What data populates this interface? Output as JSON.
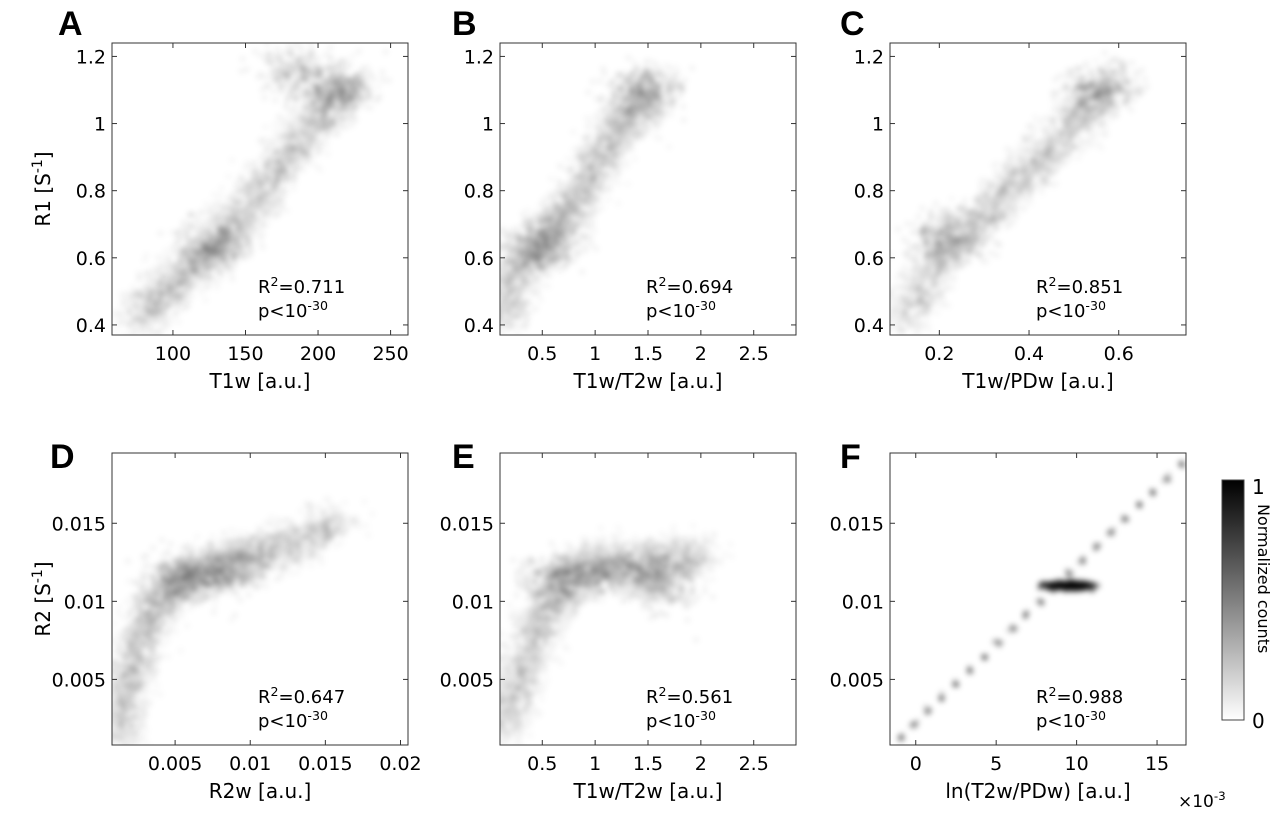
{
  "figure": {
    "colorbar": {
      "label": "Normalized counts",
      "max_label": "1",
      "min_label": "0",
      "range": [
        0,
        1
      ],
      "colors": {
        "low": "#ffffff",
        "high": "#000000"
      }
    }
  },
  "chart_data": [
    {
      "panel": "A",
      "type": "heatmap",
      "xlabel": "T1w [a.u.]",
      "ylabel": "R1 [S-1]",
      "xlim": [
        58,
        262
      ],
      "ylim": [
        0.37,
        1.24
      ],
      "xticks": [
        100,
        150,
        200,
        250
      ],
      "xtick_labels": [
        "100",
        "150",
        "200",
        "250"
      ],
      "yticks": [
        0.4,
        0.6,
        0.8,
        1.0,
        1.2
      ],
      "ytick_labels": [
        "0.4",
        "0.6",
        "0.8",
        "1",
        "1.2"
      ],
      "annotation": {
        "r2": "R2=0.711",
        "p": "p<10-30"
      },
      "density_ridge": {
        "x": [
          75,
          100,
          125,
          150,
          175,
          200,
          225
        ],
        "y": [
          0.42,
          0.52,
          0.62,
          0.74,
          0.88,
          1.02,
          1.12
        ]
      },
      "dense_clusters": [
        {
          "x": 130,
          "y": 0.64,
          "weight": 1.0
        },
        {
          "x": 185,
          "y": 1.15,
          "weight": 0.8
        },
        {
          "x": 212,
          "y": 1.1,
          "weight": 0.9
        }
      ]
    },
    {
      "panel": "B",
      "type": "heatmap",
      "xlabel": "T1w/T2w [a.u.]",
      "ylabel": "",
      "xlim": [
        0.1,
        2.9
      ],
      "ylim": [
        0.37,
        1.24
      ],
      "xticks": [
        0.5,
        1,
        1.5,
        2,
        2.5
      ],
      "xtick_labels": [
        "0.5",
        "1",
        "1.5",
        "2",
        "2.5"
      ],
      "yticks": [
        0.4,
        0.6,
        0.8,
        1.0,
        1.2
      ],
      "ytick_labels": [
        "0.4",
        "0.6",
        "0.8",
        "1",
        "1.2"
      ],
      "annotation": {
        "r2": "R2=0.694",
        "p": "p<10-30"
      },
      "density_ridge": {
        "x": [
          0.12,
          0.3,
          0.55,
          0.8,
          1.05,
          1.3,
          1.55
        ],
        "y": [
          0.42,
          0.58,
          0.66,
          0.76,
          0.9,
          1.02,
          1.1
        ]
      },
      "dense_clusters": [
        {
          "x": 0.5,
          "y": 0.64,
          "weight": 1.0
        },
        {
          "x": 1.48,
          "y": 1.1,
          "weight": 0.9
        }
      ]
    },
    {
      "panel": "C",
      "type": "heatmap",
      "xlabel": "T1w/PDw [a.u.]",
      "ylabel": "",
      "xlim": [
        0.09,
        0.75
      ],
      "ylim": [
        0.37,
        1.24
      ],
      "xticks": [
        0.2,
        0.4,
        0.6
      ],
      "xtick_labels": [
        "0.2",
        "0.4",
        "0.6"
      ],
      "yticks": [
        0.4,
        0.6,
        0.8,
        1.0,
        1.2
      ],
      "ytick_labels": [
        "0.4",
        "0.6",
        "0.8",
        "1",
        "1.2"
      ],
      "annotation": {
        "r2": "R2=0.851",
        "p": "p<10-30"
      },
      "density_ridge": {
        "x": [
          0.12,
          0.2,
          0.3,
          0.4,
          0.5,
          0.58
        ],
        "y": [
          0.42,
          0.6,
          0.73,
          0.86,
          1.0,
          1.12
        ]
      },
      "dense_clusters": [
        {
          "x": 0.22,
          "y": 0.66,
          "weight": 1.0
        },
        {
          "x": 0.56,
          "y": 1.1,
          "weight": 0.9
        }
      ]
    },
    {
      "panel": "D",
      "type": "heatmap",
      "xlabel": "R2w [a.u.]",
      "ylabel": "R2 [S-1]",
      "xlim": [
        0.0008,
        0.0205
      ],
      "ylim": [
        0.0008,
        0.0195
      ],
      "xticks": [
        0.005,
        0.01,
        0.015,
        0.02
      ],
      "xtick_labels": [
        "0.005",
        "0.01",
        "0.015",
        "0.02"
      ],
      "yticks": [
        0.005,
        0.01,
        0.015
      ],
      "ytick_labels": [
        "0.005",
        "0.01",
        "0.015"
      ],
      "annotation": {
        "r2": "R2=0.647",
        "p": "p<10-30"
      },
      "density_ridge": {
        "x": [
          0.0012,
          0.002,
          0.003,
          0.0045,
          0.0065,
          0.009,
          0.012,
          0.016
        ],
        "y": [
          0.0015,
          0.005,
          0.0085,
          0.0108,
          0.0118,
          0.0125,
          0.0135,
          0.015
        ]
      },
      "dense_clusters": [
        {
          "x": 0.0055,
          "y": 0.0115,
          "weight": 1.0
        },
        {
          "x": 0.0085,
          "y": 0.012,
          "weight": 0.8
        }
      ]
    },
    {
      "panel": "E",
      "type": "heatmap",
      "xlabel": "T1w/T2w [a.u.]",
      "ylabel": "",
      "xlim": [
        0.1,
        2.9
      ],
      "ylim": [
        0.0008,
        0.0195
      ],
      "xticks": [
        0.5,
        1,
        1.5,
        2,
        2.5
      ],
      "xtick_labels": [
        "0.5",
        "1",
        "1.5",
        "2",
        "2.5"
      ],
      "yticks": [
        0.005,
        0.01,
        0.015
      ],
      "ytick_labels": [
        "0.005",
        "0.01",
        "0.015"
      ],
      "annotation": {
        "r2": "R2=0.561",
        "p": "p<10-30"
      },
      "density_ridge": {
        "x": [
          0.12,
          0.3,
          0.5,
          0.75,
          1.0,
          1.3,
          1.6,
          2.0
        ],
        "y": [
          0.0015,
          0.0055,
          0.009,
          0.0115,
          0.0122,
          0.0122,
          0.0124,
          0.0128
        ]
      },
      "dense_clusters": [
        {
          "x": 0.65,
          "y": 0.0115,
          "weight": 1.0
        },
        {
          "x": 1.6,
          "y": 0.011,
          "weight": 0.9
        }
      ]
    },
    {
      "panel": "F",
      "type": "heatmap",
      "xlabel": "ln(T2w/PDw) [a.u.]",
      "x_multiplier": "×10-3",
      "ylabel": "",
      "xlim": [
        -1.6,
        16.8
      ],
      "ylim": [
        0.0008,
        0.0195
      ],
      "xticks": [
        0,
        5,
        10,
        15
      ],
      "xtick_labels": [
        "0",
        "5",
        "10",
        "15"
      ],
      "yticks": [
        0.005,
        0.01,
        0.015
      ],
      "ytick_labels": [
        "0.005",
        "0.01",
        "0.015"
      ],
      "annotation": {
        "r2": "R2=0.988",
        "p": "p<10-30"
      },
      "density_ridge": {
        "x": [
          -1.0,
          16.5
        ],
        "y": [
          0.0012,
          0.0188
        ]
      },
      "dense_clusters": [
        {
          "x": 9.5,
          "y": 0.011,
          "weight": 1.0
        }
      ]
    }
  ]
}
